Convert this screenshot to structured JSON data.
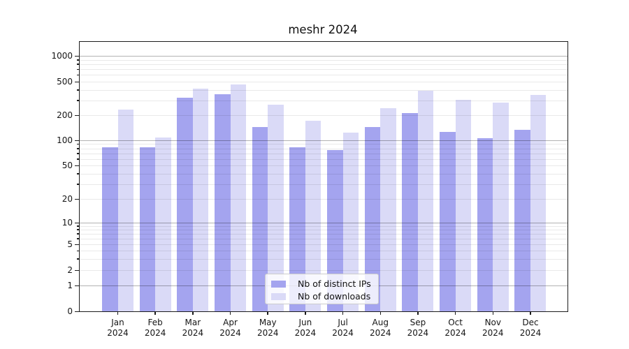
{
  "title": "meshr 2024",
  "chart_data": {
    "type": "bar",
    "title": "meshr 2024",
    "categories": [
      "Jan",
      "Feb",
      "Mar",
      "Apr",
      "May",
      "Jun",
      "Jul",
      "Aug",
      "Sep",
      "Oct",
      "Nov",
      "Dec"
    ],
    "year_label": "2024",
    "series": [
      {
        "name": "Nb of distinct IPs",
        "color": "#a4a4ef",
        "values": [
          83,
          83,
          323,
          356,
          144,
          82,
          77,
          144,
          212,
          126,
          106,
          133
        ]
      },
      {
        "name": "Nb of downloads",
        "color": "#dadaf7",
        "values": [
          232,
          108,
          413,
          463,
          266,
          171,
          124,
          241,
          390,
          304,
          281,
          347
        ]
      }
    ],
    "yscale": "symlog",
    "yticks": [
      0,
      1,
      2,
      5,
      10,
      20,
      50,
      100,
      200,
      500,
      1000
    ],
    "ylim": [
      0,
      1400
    ],
    "xlabel": "",
    "ylabel": "",
    "grid": "both",
    "legend_position": "lower center"
  },
  "colors": {
    "spine": "#1c1c1c",
    "major_grid": "rgba(0,0,0,0.30)",
    "minor_grid": "rgba(0,0,0,0.085)",
    "background": "#ffffff"
  }
}
